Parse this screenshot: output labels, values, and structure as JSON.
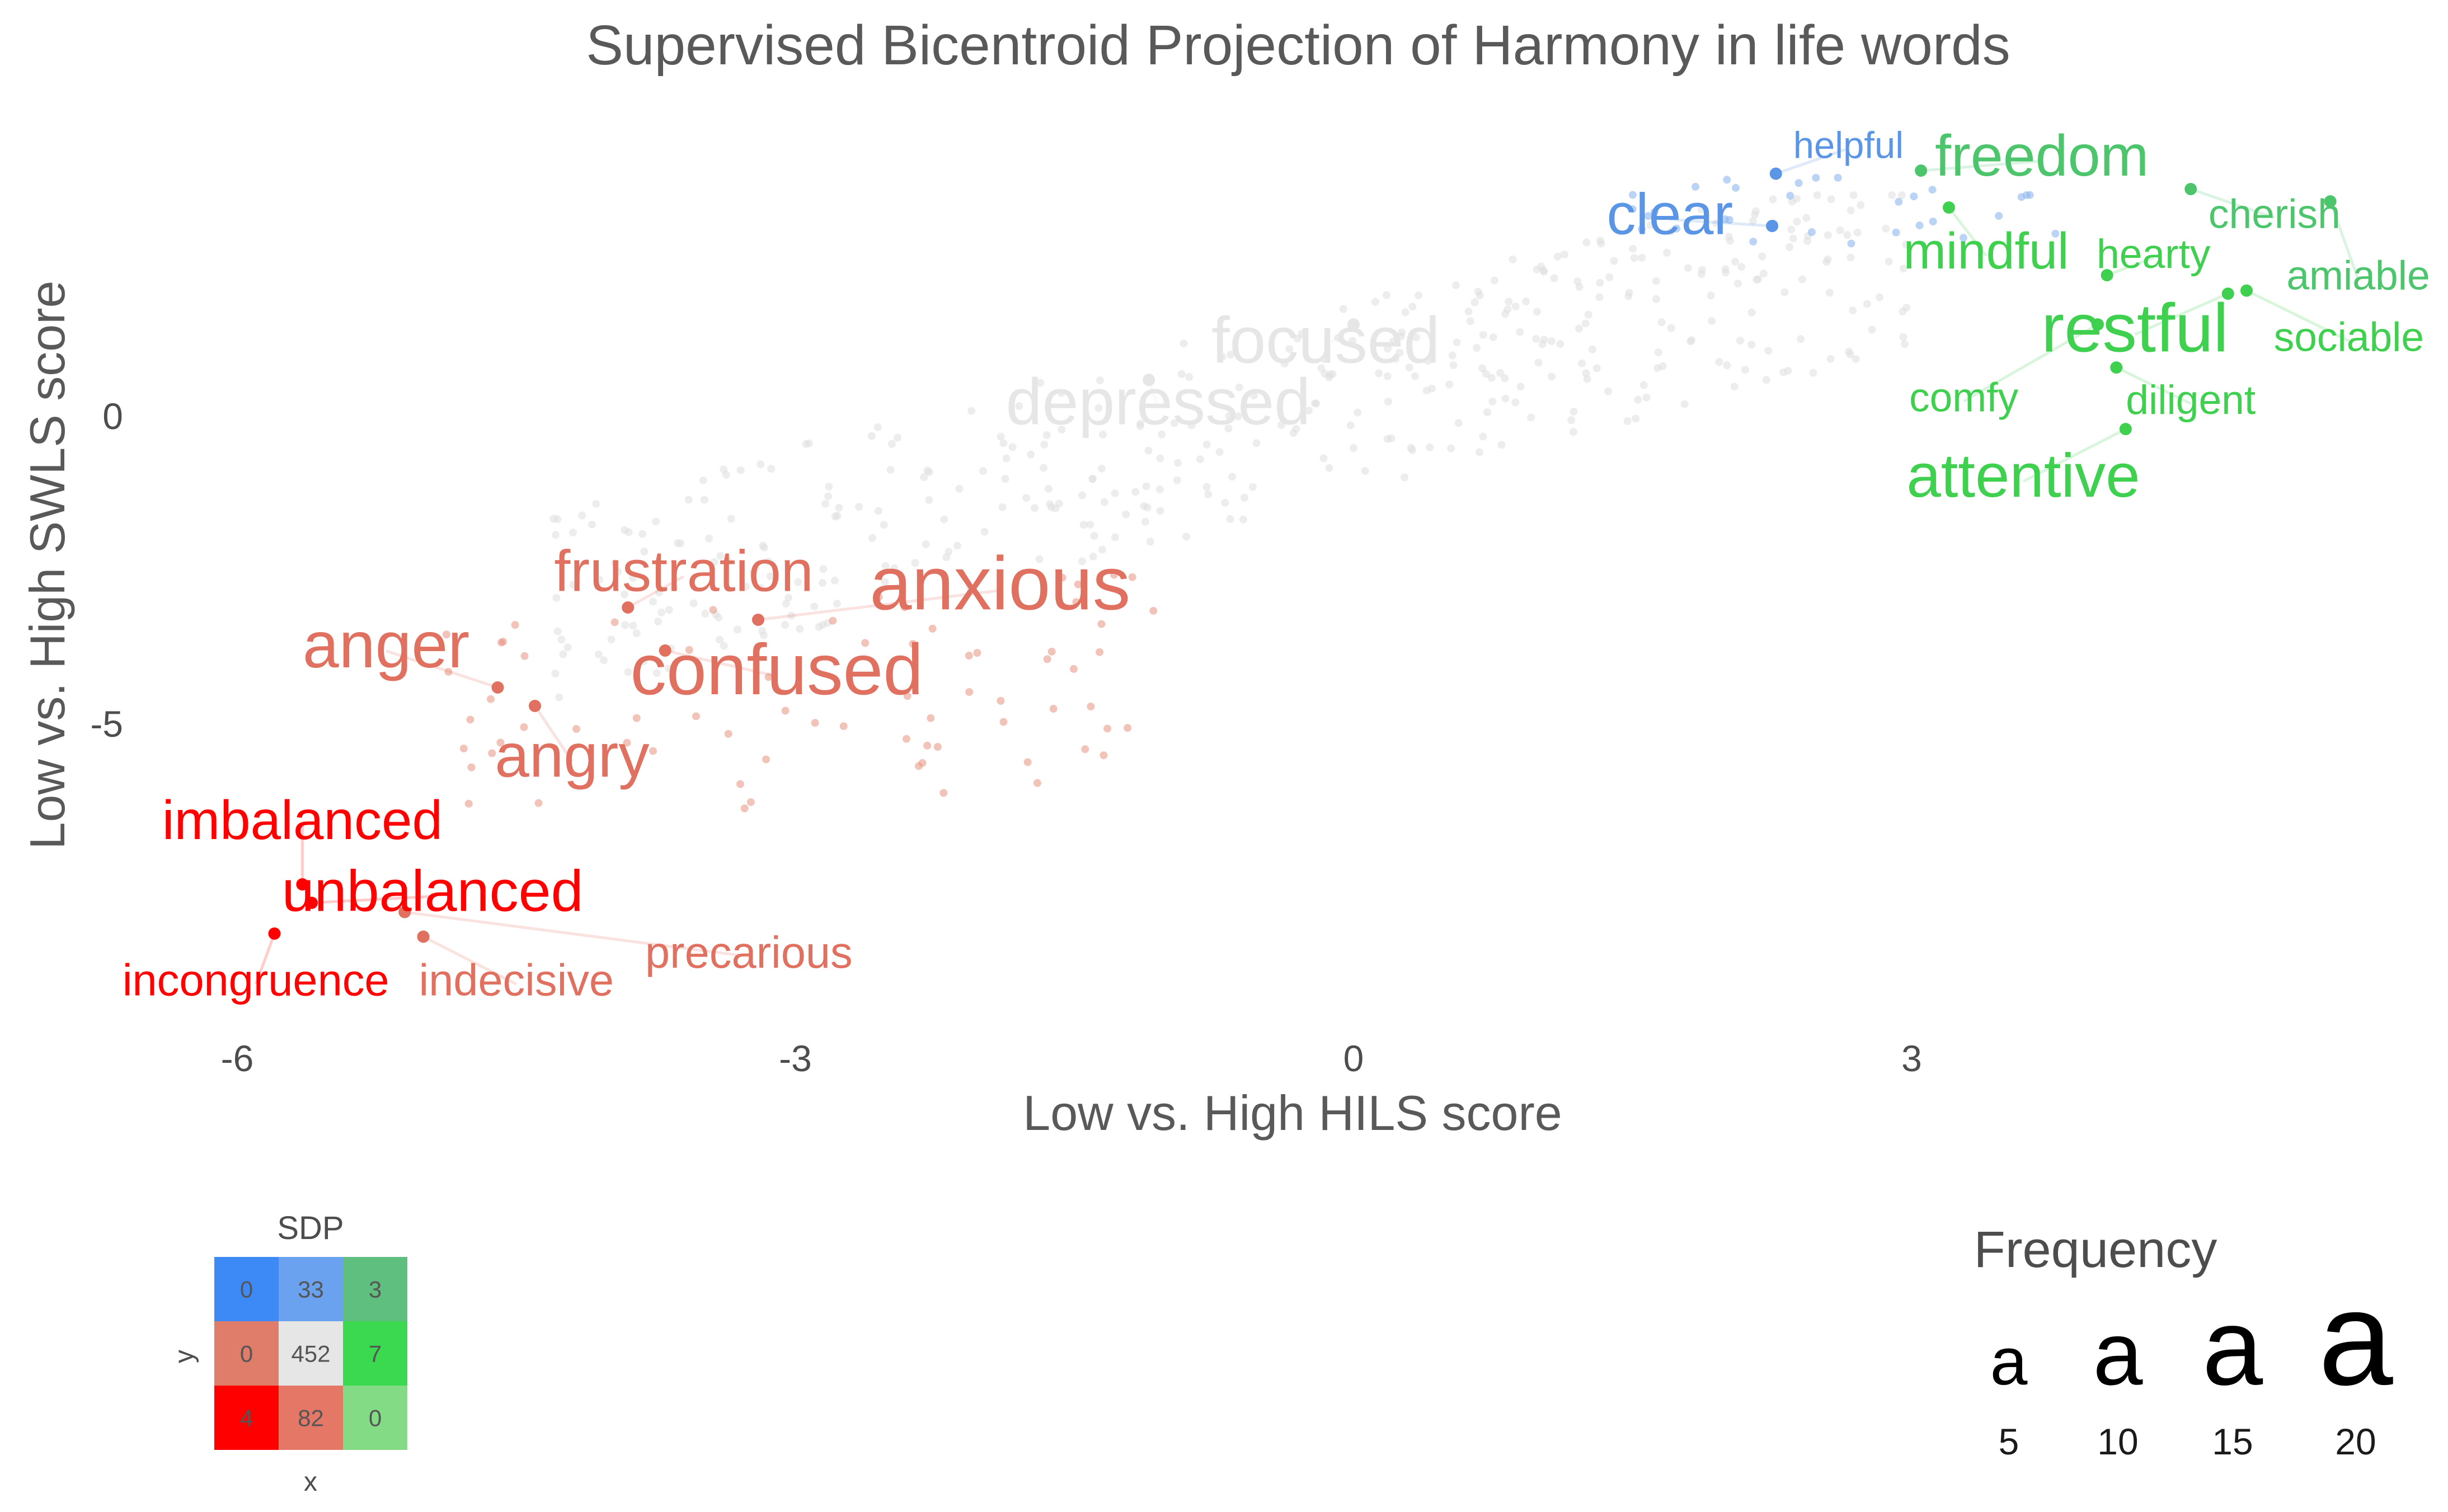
{
  "chart_data": {
    "type": "scatter",
    "title": "Supervised Bicentroid Projection of Harmony in life words",
    "xlabel": "Low vs. High HILS score",
    "ylabel": "Low vs. High SWLS score",
    "xlim": [
      -6.2,
      5.5
    ],
    "ylim": [
      -9.6,
      4.9
    ],
    "x_ticks": [
      -6,
      -3,
      0,
      3
    ],
    "y_ticks": [
      0,
      -5
    ],
    "grid": false,
    "colors": {
      "blue": "#4a88e8",
      "green": "#33cc55",
      "red_dark": "#ff0000",
      "red_light": "#e07060",
      "gray": "#d9d9d9"
    },
    "labeled_words": [
      {
        "word": "helpful",
        "x": 2.27,
        "y": 3.95,
        "lx": 2.66,
        "ly": 4.42,
        "freq": 5,
        "color": "#5a95e6"
      },
      {
        "word": "clear",
        "x": 2.25,
        "y": 3.1,
        "lx": 1.7,
        "ly": 3.3,
        "freq": 11,
        "color": "#5a95e6"
      },
      {
        "word": "freedom",
        "x": 3.05,
        "y": 4.0,
        "lx": 3.7,
        "ly": 4.25,
        "freq": 11,
        "color": "#4cc56c"
      },
      {
        "word": "mindful",
        "x": 3.2,
        "y": 3.4,
        "lx": 3.4,
        "ly": 2.7,
        "freq": 9,
        "color": "#3fd04f"
      },
      {
        "word": "cherish",
        "x": 4.5,
        "y": 3.7,
        "lx": 4.95,
        "ly": 3.3,
        "freq": 6,
        "color": "#4cc56c"
      },
      {
        "word": "hearty",
        "x": 4.05,
        "y": 2.3,
        "lx": 4.3,
        "ly": 2.65,
        "freq": 6,
        "color": "#3fd04f"
      },
      {
        "word": "amiable",
        "x": 5.25,
        "y": 3.5,
        "lx": 5.4,
        "ly": 2.3,
        "freq": 6,
        "color": "#4cc56c"
      },
      {
        "word": "restful",
        "x": 4.7,
        "y": 2.0,
        "lx": 4.2,
        "ly": 1.45,
        "freq": 14,
        "color": "#3fd04f"
      },
      {
        "word": "sociable",
        "x": 4.8,
        "y": 2.05,
        "lx": 5.35,
        "ly": 1.3,
        "freq": 6,
        "color": "#3fd04f"
      },
      {
        "word": "comfy",
        "x": 4.0,
        "y": 1.5,
        "lx": 3.28,
        "ly": 0.32,
        "freq": 6,
        "color": "#3fd04f"
      },
      {
        "word": "diligent",
        "x": 4.1,
        "y": 0.8,
        "lx": 4.5,
        "ly": 0.28,
        "freq": 6,
        "color": "#3fd04f"
      },
      {
        "word": "attentive",
        "x": 4.15,
        "y": -0.2,
        "lx": 3.6,
        "ly": -0.95,
        "freq": 12,
        "color": "#3fd04f"
      },
      {
        "word": "focused",
        "x": 0.0,
        "y": 1.5,
        "lx": -0.15,
        "ly": 1.25,
        "freq": 13,
        "color": "#e6e6e6"
      },
      {
        "word": "depressed",
        "x": -1.1,
        "y": 0.6,
        "lx": -1.05,
        "ly": 0.25,
        "freq": 13,
        "color": "#e6e6e6"
      },
      {
        "word": "frustration",
        "x": -3.9,
        "y": -3.1,
        "lx": -3.6,
        "ly": -2.5,
        "freq": 11,
        "color": "#e07060"
      },
      {
        "word": "anxious",
        "x": -3.2,
        "y": -3.3,
        "lx": -1.9,
        "ly": -2.7,
        "freq": 16,
        "color": "#e07060"
      },
      {
        "word": "anger",
        "x": -4.6,
        "y": -4.4,
        "lx": -5.2,
        "ly": -3.7,
        "freq": 13,
        "color": "#e07060"
      },
      {
        "word": "confused",
        "x": -3.7,
        "y": -3.8,
        "lx": -3.1,
        "ly": -4.1,
        "freq": 15,
        "color": "#e07060"
      },
      {
        "word": "angry",
        "x": -4.4,
        "y": -4.7,
        "lx": -4.2,
        "ly": -5.5,
        "freq": 12,
        "color": "#e07060"
      },
      {
        "word": "imbalanced",
        "x": -5.65,
        "y": -7.6,
        "lx": -5.65,
        "ly": -6.55,
        "freq": 10,
        "color": "#ff0000"
      },
      {
        "word": "unbalanced",
        "x": -5.6,
        "y": -7.9,
        "lx": -4.95,
        "ly": -7.7,
        "freq": 11,
        "color": "#ff0000"
      },
      {
        "word": "precarious",
        "x": -5.1,
        "y": -8.05,
        "lx": -3.25,
        "ly": -8.7,
        "freq": 7,
        "color": "#e07060"
      },
      {
        "word": "incongruence",
        "x": -5.8,
        "y": -8.4,
        "lx": -5.9,
        "ly": -9.15,
        "freq": 7,
        "color": "#ff0000"
      },
      {
        "word": "indecisive",
        "x": -5.0,
        "y": -8.45,
        "lx": -4.5,
        "ly": -9.15,
        "freq": 7,
        "color": "#e07060"
      }
    ],
    "sdp_legend": {
      "title": "SDP",
      "xlabel": "x",
      "ylabel": "y",
      "rows": [
        [
          {
            "value": "0",
            "color": "#3d8af7"
          },
          {
            "value": "33",
            "color": "#6aa2f0"
          },
          {
            "value": "3",
            "color": "#5fbf7e"
          }
        ],
        [
          {
            "value": "0",
            "color": "#e07c6a"
          },
          {
            "value": "452",
            "color": "#e6e6e6"
          },
          {
            "value": "7",
            "color": "#3ad94f"
          }
        ],
        [
          {
            "value": "4",
            "color": "#ff0000"
          },
          {
            "value": "82",
            "color": "#e57766"
          },
          {
            "value": "0",
            "color": "#84db86"
          }
        ]
      ]
    },
    "frequency_legend": {
      "title": "Frequency",
      "glyph": "a",
      "values": [
        "5",
        "10",
        "15",
        "20"
      ]
    }
  }
}
